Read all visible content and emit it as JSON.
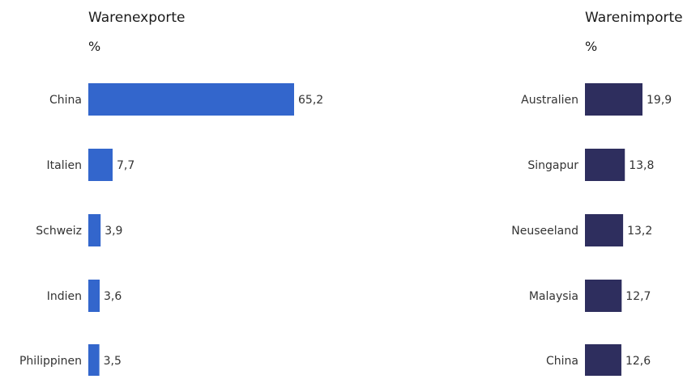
{
  "chart_data": [
    {
      "type": "bar",
      "orientation": "horizontal",
      "title": "Warenexporte",
      "unit": "%",
      "categories": [
        "China",
        "Italien",
        "Schweiz",
        "Indien",
        "Philippinen"
      ],
      "values": [
        65.2,
        7.7,
        3.9,
        3.6,
        3.5
      ],
      "value_labels": [
        "65,2",
        "7,7",
        "3,9",
        "3,6",
        "3,5"
      ],
      "color": "#3366cc",
      "grid": false
    },
    {
      "type": "bar",
      "orientation": "horizontal",
      "title": "Warenimporte",
      "unit": "%",
      "categories": [
        "Australien",
        "Singapur",
        "Neuseeland",
        "Malaysia",
        "China"
      ],
      "values": [
        19.9,
        13.8,
        13.2,
        12.7,
        12.6
      ],
      "value_labels": [
        "19,9",
        "13,8",
        "13,2",
        "12,7",
        "12,6"
      ],
      "color": "#2e2e5e",
      "grid": false
    }
  ]
}
